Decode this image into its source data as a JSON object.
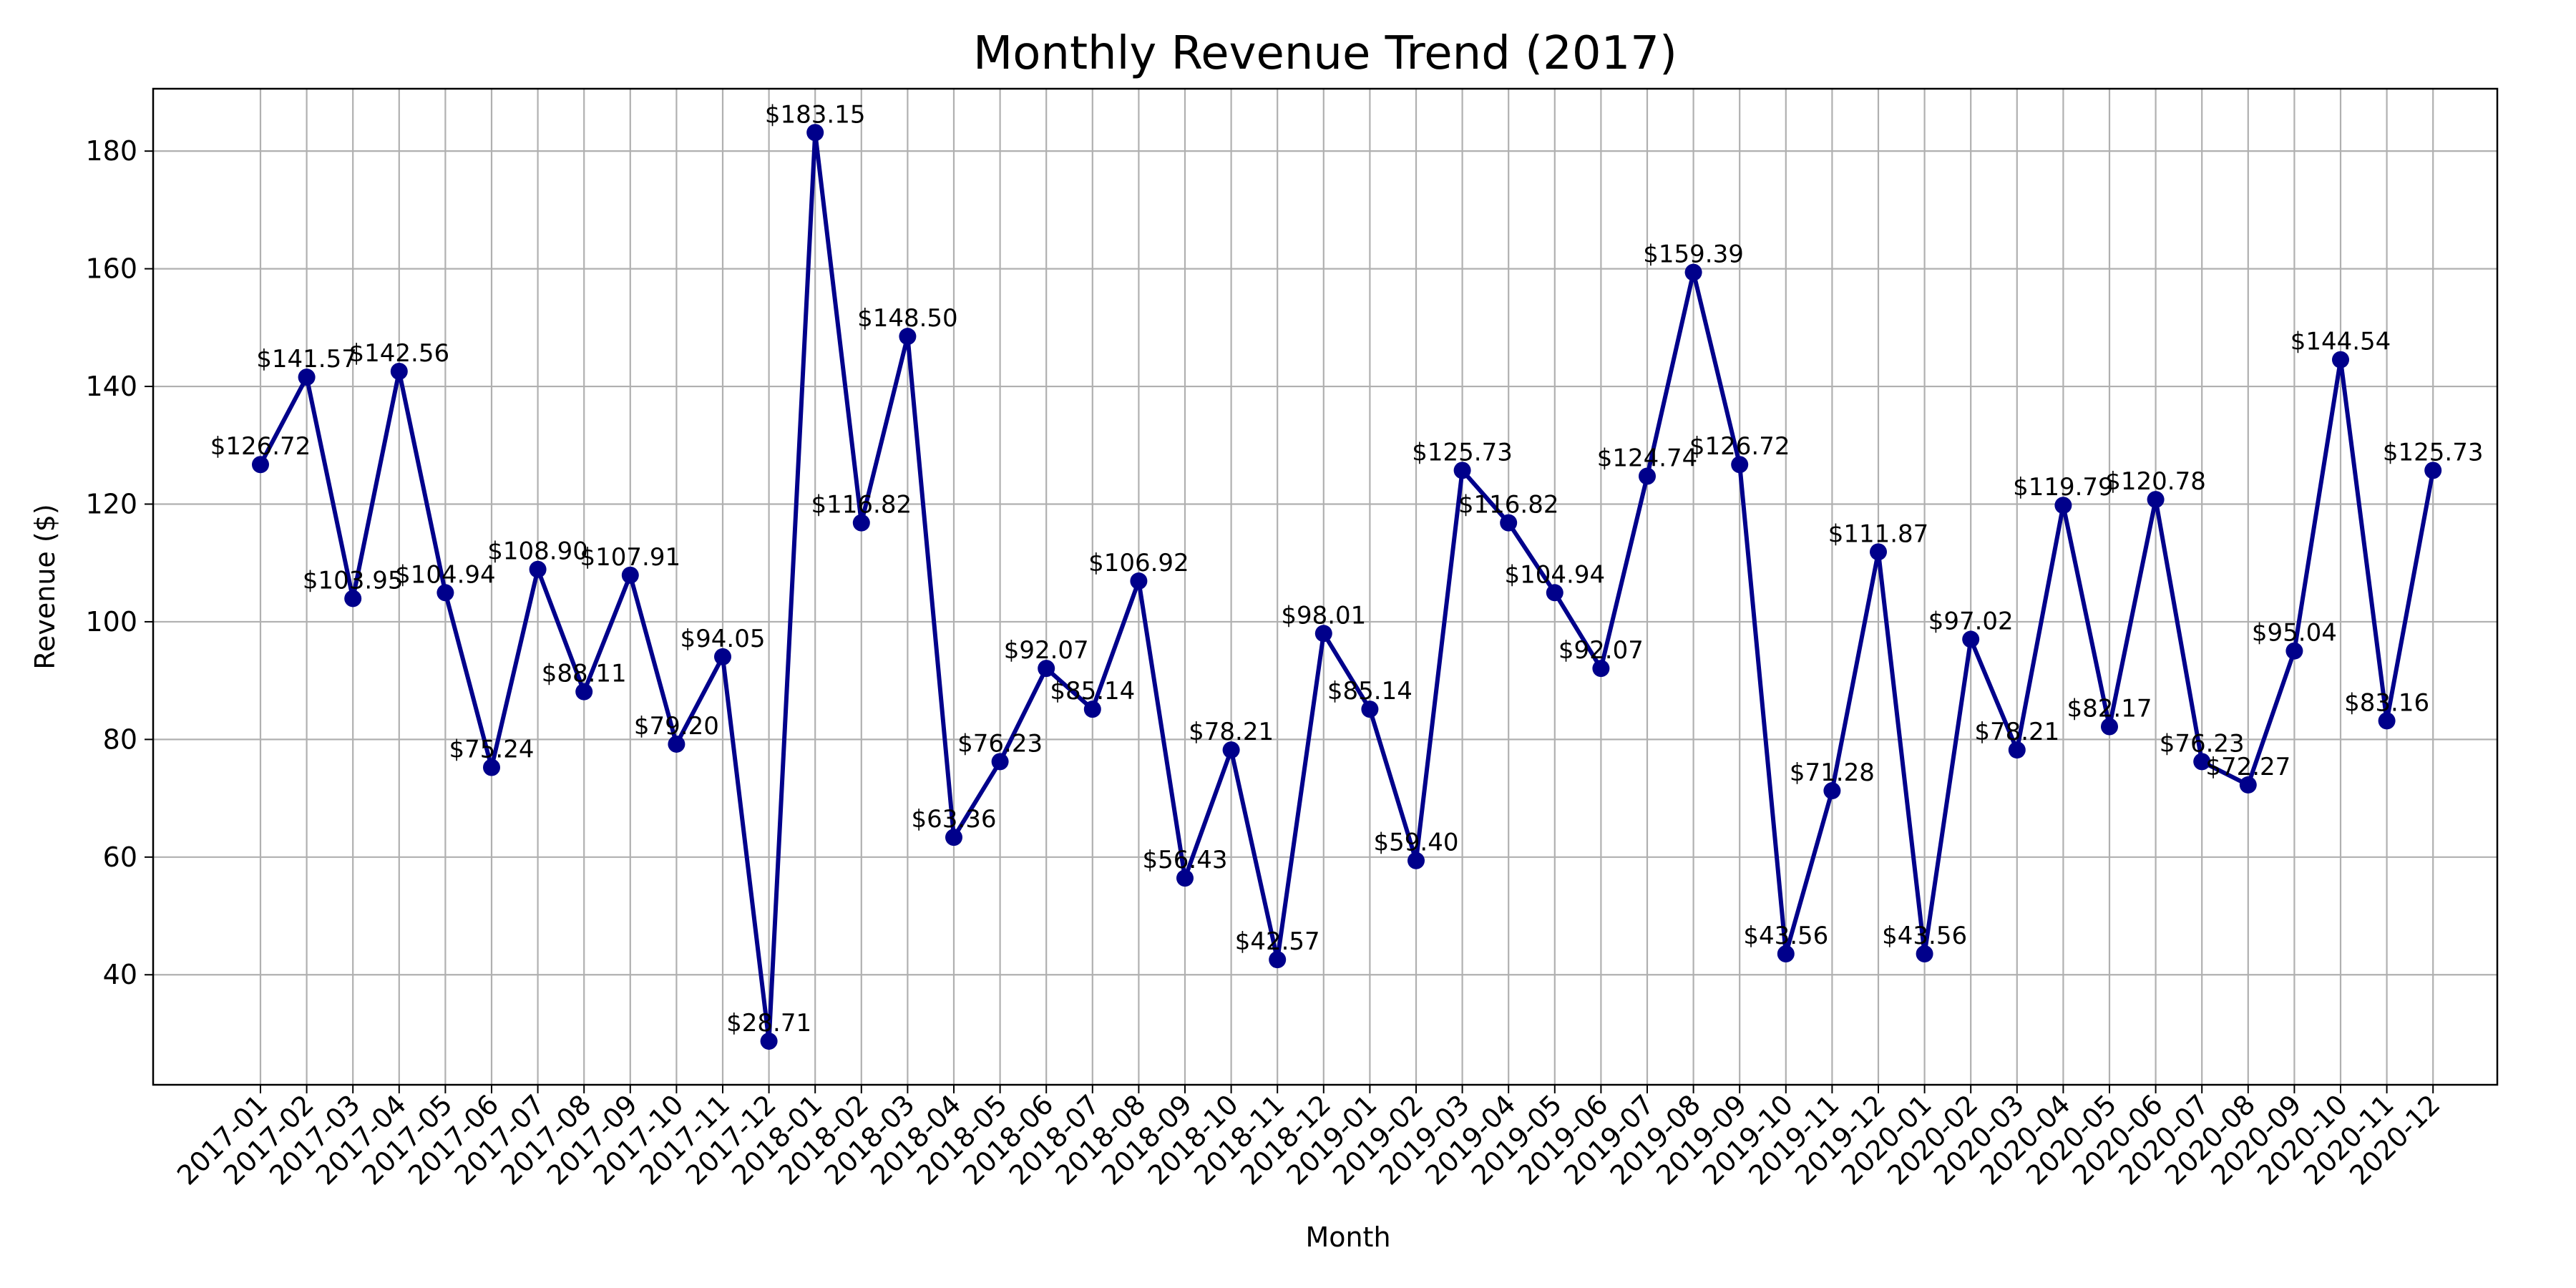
{
  "chart_data": {
    "type": "line",
    "title": "Monthly Revenue Trend (2017)",
    "xlabel": "Month",
    "ylabel": "Revenue ($)",
    "ylim": [
      21.3,
      190.6
    ],
    "yticks": [
      40,
      60,
      80,
      100,
      120,
      140,
      160,
      180
    ],
    "grid": true,
    "legend": "none",
    "colors": {
      "line": "#00008b",
      "grid": "#b0b0b0",
      "axis": "#000000",
      "background": "#ffffff"
    },
    "categories": [
      "2017-01",
      "2017-02",
      "2017-03",
      "2017-04",
      "2017-05",
      "2017-06",
      "2017-07",
      "2017-08",
      "2017-09",
      "2017-10",
      "2017-11",
      "2017-12",
      "2018-01",
      "2018-02",
      "2018-03",
      "2018-04",
      "2018-05",
      "2018-06",
      "2018-07",
      "2018-08",
      "2018-09",
      "2018-10",
      "2018-11",
      "2018-12",
      "2019-01",
      "2019-02",
      "2019-03",
      "2019-04",
      "2019-05",
      "2019-06",
      "2019-07",
      "2019-08",
      "2019-09",
      "2019-10",
      "2019-11",
      "2019-12",
      "2020-01",
      "2020-02",
      "2020-03",
      "2020-04",
      "2020-05",
      "2020-06",
      "2020-07",
      "2020-08",
      "2020-09",
      "2020-10",
      "2020-11",
      "2020-12"
    ],
    "series": [
      {
        "values": [
          126.72,
          141.57,
          103.95,
          142.56,
          104.94,
          75.24,
          108.9,
          88.11,
          107.91,
          79.2,
          94.05,
          28.71,
          183.15,
          116.82,
          148.5,
          63.36,
          76.23,
          92.07,
          85.14,
          106.92,
          56.43,
          78.21,
          42.57,
          98.01,
          85.14,
          59.4,
          125.73,
          116.82,
          104.94,
          92.07,
          124.74,
          159.39,
          126.72,
          43.56,
          71.28,
          111.87,
          43.56,
          97.02,
          78.21,
          119.79,
          82.17,
          120.78,
          76.23,
          72.27,
          95.04,
          144.54,
          83.16,
          125.73
        ],
        "labels": [
          "$126.72",
          "$141.57",
          "$103.95",
          "$142.56",
          "$104.94",
          "$75.24",
          "$108.90",
          "$88.11",
          "$107.91",
          "$79.20",
          "$94.05",
          "$28.71",
          "$183.15",
          "$116.82",
          "$148.50",
          "$63.36",
          "$76.23",
          "$92.07",
          "$85.14",
          "$106.92",
          "$56.43",
          "$78.21",
          "$42.57",
          "$98.01",
          "$85.14",
          "$59.40",
          "$125.73",
          "$116.82",
          "$104.94",
          "$92.07",
          "$124.74",
          "$159.39",
          "$126.72",
          "$43.56",
          "$71.28",
          "$111.87",
          "$43.56",
          "$97.02",
          "$78.21",
          "$119.79",
          "$82.17",
          "$120.78",
          "$76.23",
          "$72.27",
          "$95.04",
          "$144.54",
          "$83.16",
          "$125.73"
        ]
      }
    ]
  }
}
